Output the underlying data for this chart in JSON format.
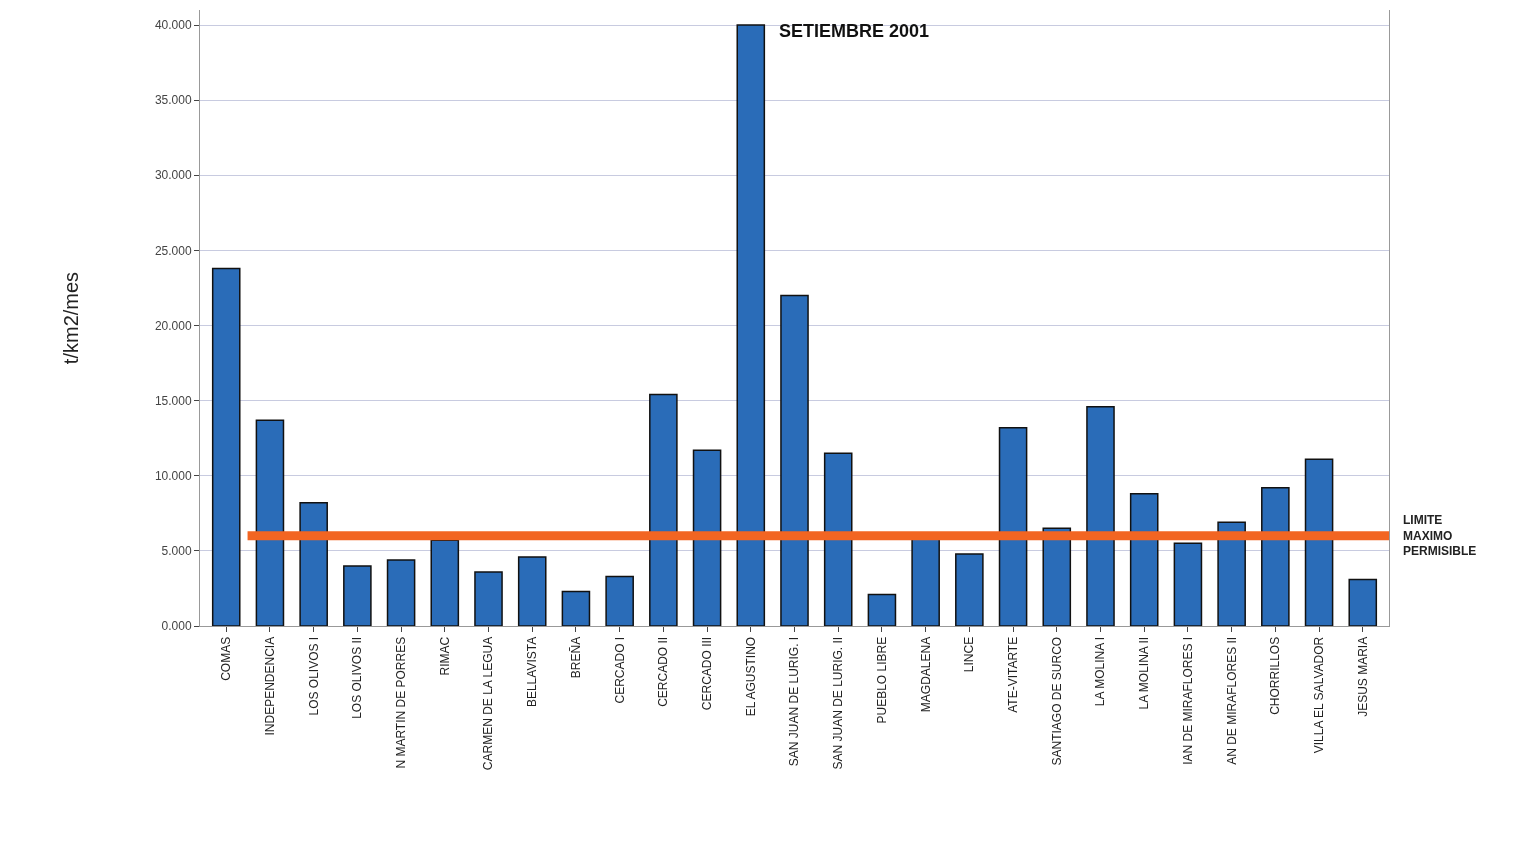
{
  "chart_data": {
    "type": "bar",
    "title": "SETIEMBRE 2001",
    "ylabel": "t/km2/mes",
    "categories": [
      "COMAS",
      "INDEPENDENCIA",
      "LOS OLIVOS I",
      "LOS OLIVOS II",
      "N MARTIN DE PORRES",
      "RIMAC",
      "CARMEN DE LA LEGUA",
      "BELLAVISTA",
      "BREÑA",
      "CERCADO I",
      "CERCADO II",
      "CERCADO III",
      "EL AGUSTINO",
      "SAN JUAN DE LURIG. I",
      "SAN JUAN DE LURIG. II",
      "PUEBLO LIBRE",
      "MAGDALENA",
      "LINCE",
      "ATE-VITARTE",
      "SANTIAGO DE SURCO",
      "LA MOLINA I",
      "LA MOLINA II",
      "IAN DE MIRAFLORES I",
      "AN DE MIRAFLORES II",
      "CHORRILLOS",
      "VILLA EL SALVADOR",
      "JESUS MARIA"
    ],
    "values": [
      23.8,
      13.7,
      8.2,
      4.0,
      4.4,
      5.7,
      3.6,
      4.6,
      2.3,
      3.3,
      15.4,
      11.7,
      40.0,
      22.0,
      11.5,
      2.1,
      5.9,
      4.8,
      13.2,
      6.5,
      14.6,
      8.8,
      5.5,
      6.9,
      9.2,
      11.1,
      3.1
    ],
    "color": "#2a6cb8",
    "ylim": [
      0,
      41
    ],
    "yticks": [
      {
        "value": 0,
        "label": "0.000"
      },
      {
        "value": 5,
        "label": "5.000"
      },
      {
        "value": 10,
        "label": "10.000"
      },
      {
        "value": 15,
        "label": "15.000"
      },
      {
        "value": 20,
        "label": "20.000"
      },
      {
        "value": 25,
        "label": "25.000"
      },
      {
        "value": 30,
        "label": "30.000"
      },
      {
        "value": 35,
        "label": "35.000"
      },
      {
        "value": 40,
        "label": "40.000"
      }
    ],
    "ref_lines": [
      {
        "axis": "y",
        "value": 6.0,
        "label": "LIMITE MAXIMO PERMISIBLE",
        "color": "#f26522"
      }
    ],
    "grid": "y",
    "legend": false
  }
}
